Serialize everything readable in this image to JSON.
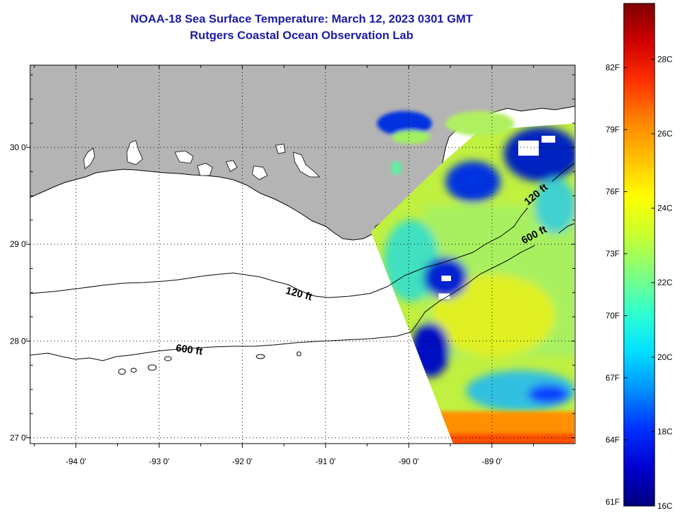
{
  "title": "NOAA-18 Sea Surface Temperature:  March 12, 2023 0301 GMT",
  "subtitle": "Rutgers Coastal Ocean Observation Lab",
  "map": {
    "lon_labels": [
      "-94 0'",
      "-93 0'",
      "-92 0'",
      "-91 0'",
      "-90 0'",
      "-89 0'"
    ],
    "lon_values": [
      -94,
      -93,
      -92,
      -91,
      -90,
      -89
    ],
    "lat_labels": [
      "30 0'",
      "29 0'",
      "28 0'",
      "27 0'"
    ],
    "lat_values": [
      30,
      29,
      28,
      27
    ],
    "lon_range": [
      -94.55,
      -88.0
    ],
    "lat_range": [
      26.94,
      30.85
    ],
    "contours": [
      {
        "label": "120 ft",
        "depth_ft": 120
      },
      {
        "label": "600 ft",
        "depth_ft": 600
      },
      {
        "label": "120 ft",
        "depth_ft": 120
      },
      {
        "label": "600 ft",
        "depth_ft": 600
      }
    ],
    "colors": {
      "land": "#b4b4b4",
      "ocean_nodata": "#ffffff",
      "coastline": "#000000",
      "grid": "#000000"
    }
  },
  "colorbar": {
    "f_labels": [
      "82F",
      "79F",
      "76F",
      "73F",
      "70F",
      "67F",
      "64F",
      "61F"
    ],
    "c_labels": [
      "28C",
      "26C",
      "24C",
      "22C",
      "20C",
      "18C",
      "16C"
    ],
    "range_c": [
      16,
      29.5
    ],
    "colors": [
      "#00007f",
      "#0000d0",
      "#0030ff",
      "#0090ff",
      "#00e0ff",
      "#30ffd0",
      "#80ff80",
      "#c8ff30",
      "#ffff00",
      "#ffc000",
      "#ff8000",
      "#ff3000",
      "#d00000",
      "#7f0000"
    ]
  }
}
